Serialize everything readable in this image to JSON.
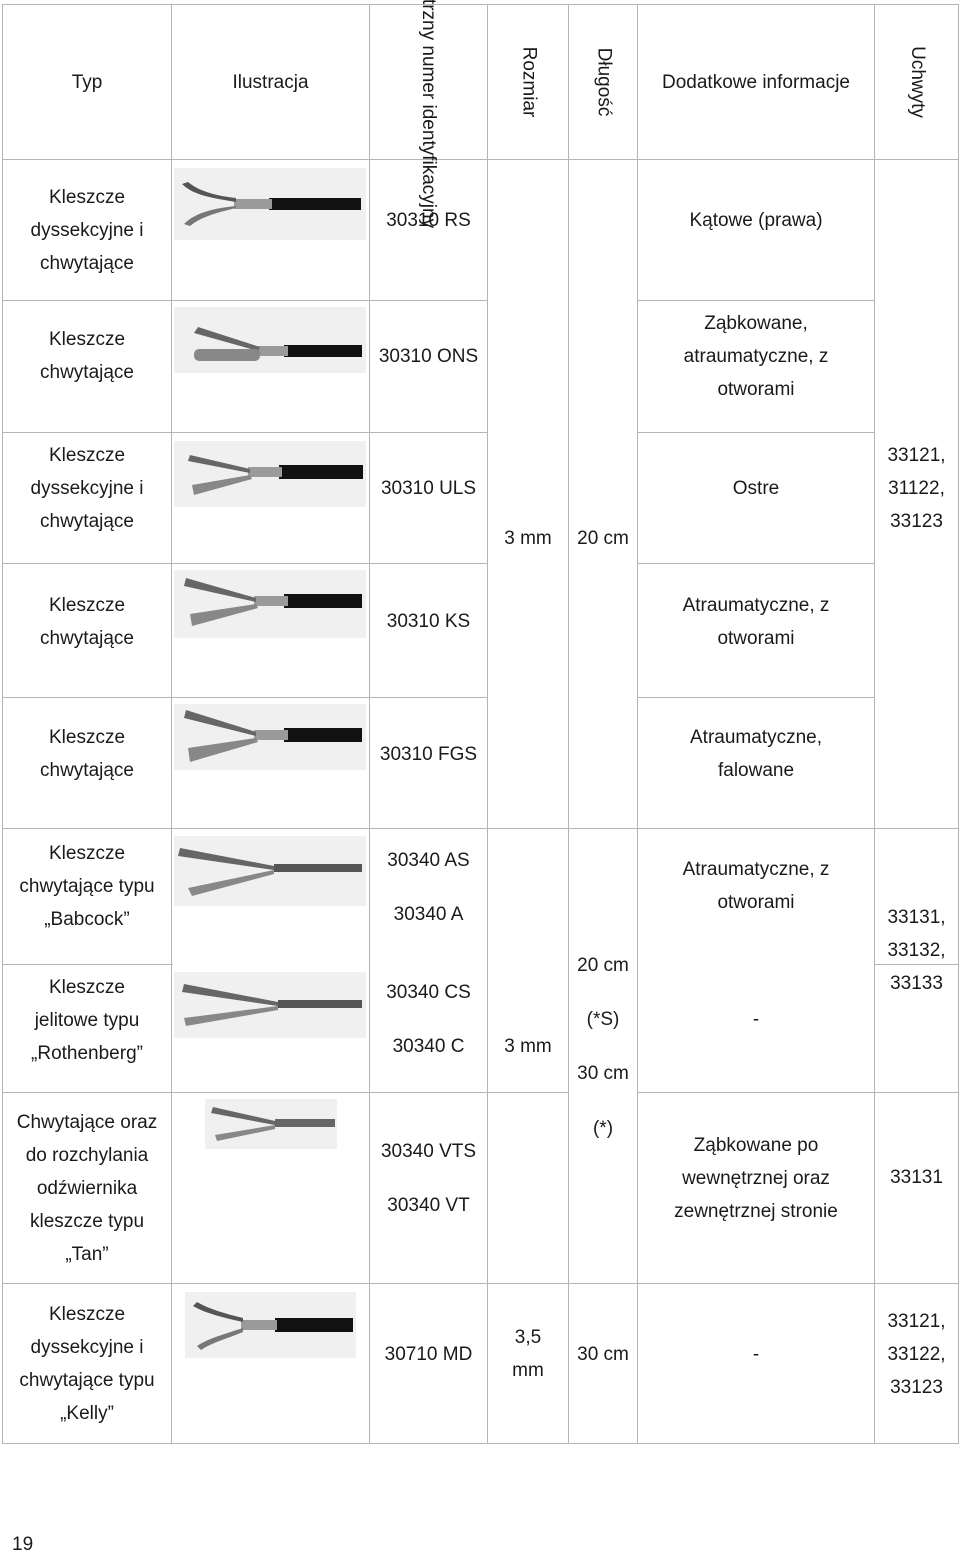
{
  "header": {
    "typ": "Typ",
    "ilustracja": "Ilustracja",
    "id_line1": "Wewnętrzny",
    "id_line2": "numer",
    "id_line3": "identyfikacyjny",
    "rozmiar": "Rozmiar",
    "dlugosc": "Długość",
    "info": "Dodatkowe informacje",
    "uchwyty": "Uchwyty"
  },
  "rows": [
    {
      "typ": [
        "Kleszcze",
        "dyssekcyjne i",
        "chwytające"
      ],
      "code": "30310 RS",
      "info": [
        "Kątowe (prawa)"
      ]
    },
    {
      "typ": [
        "Kleszcze",
        "chwytające"
      ],
      "code": "30310 ONS",
      "info": [
        "Ząbkowane,",
        "atraumatyczne, z",
        "otworami"
      ]
    },
    {
      "typ": [
        "Kleszcze",
        "dyssekcyjne i",
        "chwytające"
      ],
      "code": "30310 ULS",
      "info": [
        "Ostre"
      ]
    },
    {
      "typ": [
        "Kleszcze",
        "chwytające"
      ],
      "code": "30310 KS",
      "info": [
        "Atraumatyczne, z",
        "otworami"
      ]
    },
    {
      "typ": [
        "Kleszcze",
        "chwytające"
      ],
      "code": "30310 FGS",
      "info": [
        "Atraumatyczne,",
        "falowane"
      ]
    },
    {
      "typ": [
        "Kleszcze",
        "chwytające typu",
        "„Babcock”"
      ],
      "codes": [
        "30340 AS",
        "30340 A"
      ],
      "info": [
        "Atraumatyczne, z",
        "otworami"
      ]
    },
    {
      "typ": [
        "Kleszcze",
        "jelitowe typu",
        "„Rothenberg”"
      ],
      "codes": [
        "30340 CS",
        "30340 C"
      ],
      "info": [
        "-"
      ]
    },
    {
      "typ": [
        "Chwytające oraz",
        "do rozchylania",
        "odźwiernika",
        "kleszcze typu",
        "„Tan”"
      ],
      "codes": [
        "30340 VTS",
        "30340 VT"
      ],
      "info": [
        "Ząbkowane po",
        "wewnętrznej oraz",
        "zewnętrznej stronie"
      ],
      "uchwyty": "33131"
    },
    {
      "typ": [
        "Kleszcze",
        "dyssekcyjne i",
        "chwytające typu",
        "„Kelly”"
      ],
      "code": "30710 MD",
      "size": [
        "3,5",
        "mm"
      ],
      "length": "30 cm",
      "info": [
        "-"
      ],
      "uchwyty": [
        "33121,",
        "33122,",
        "33123"
      ]
    }
  ],
  "merged": {
    "size_a": "3 mm",
    "length_a": "20 cm",
    "uchwyty_a": [
      "33121,",
      "31122,",
      "33123"
    ],
    "size_b": "3 mm",
    "length_b": [
      "20 cm",
      "(*S)",
      "30 cm",
      "(*)"
    ],
    "uchwyty_b": [
      "33131,",
      "33132,",
      "33133"
    ]
  },
  "page_number": "19"
}
